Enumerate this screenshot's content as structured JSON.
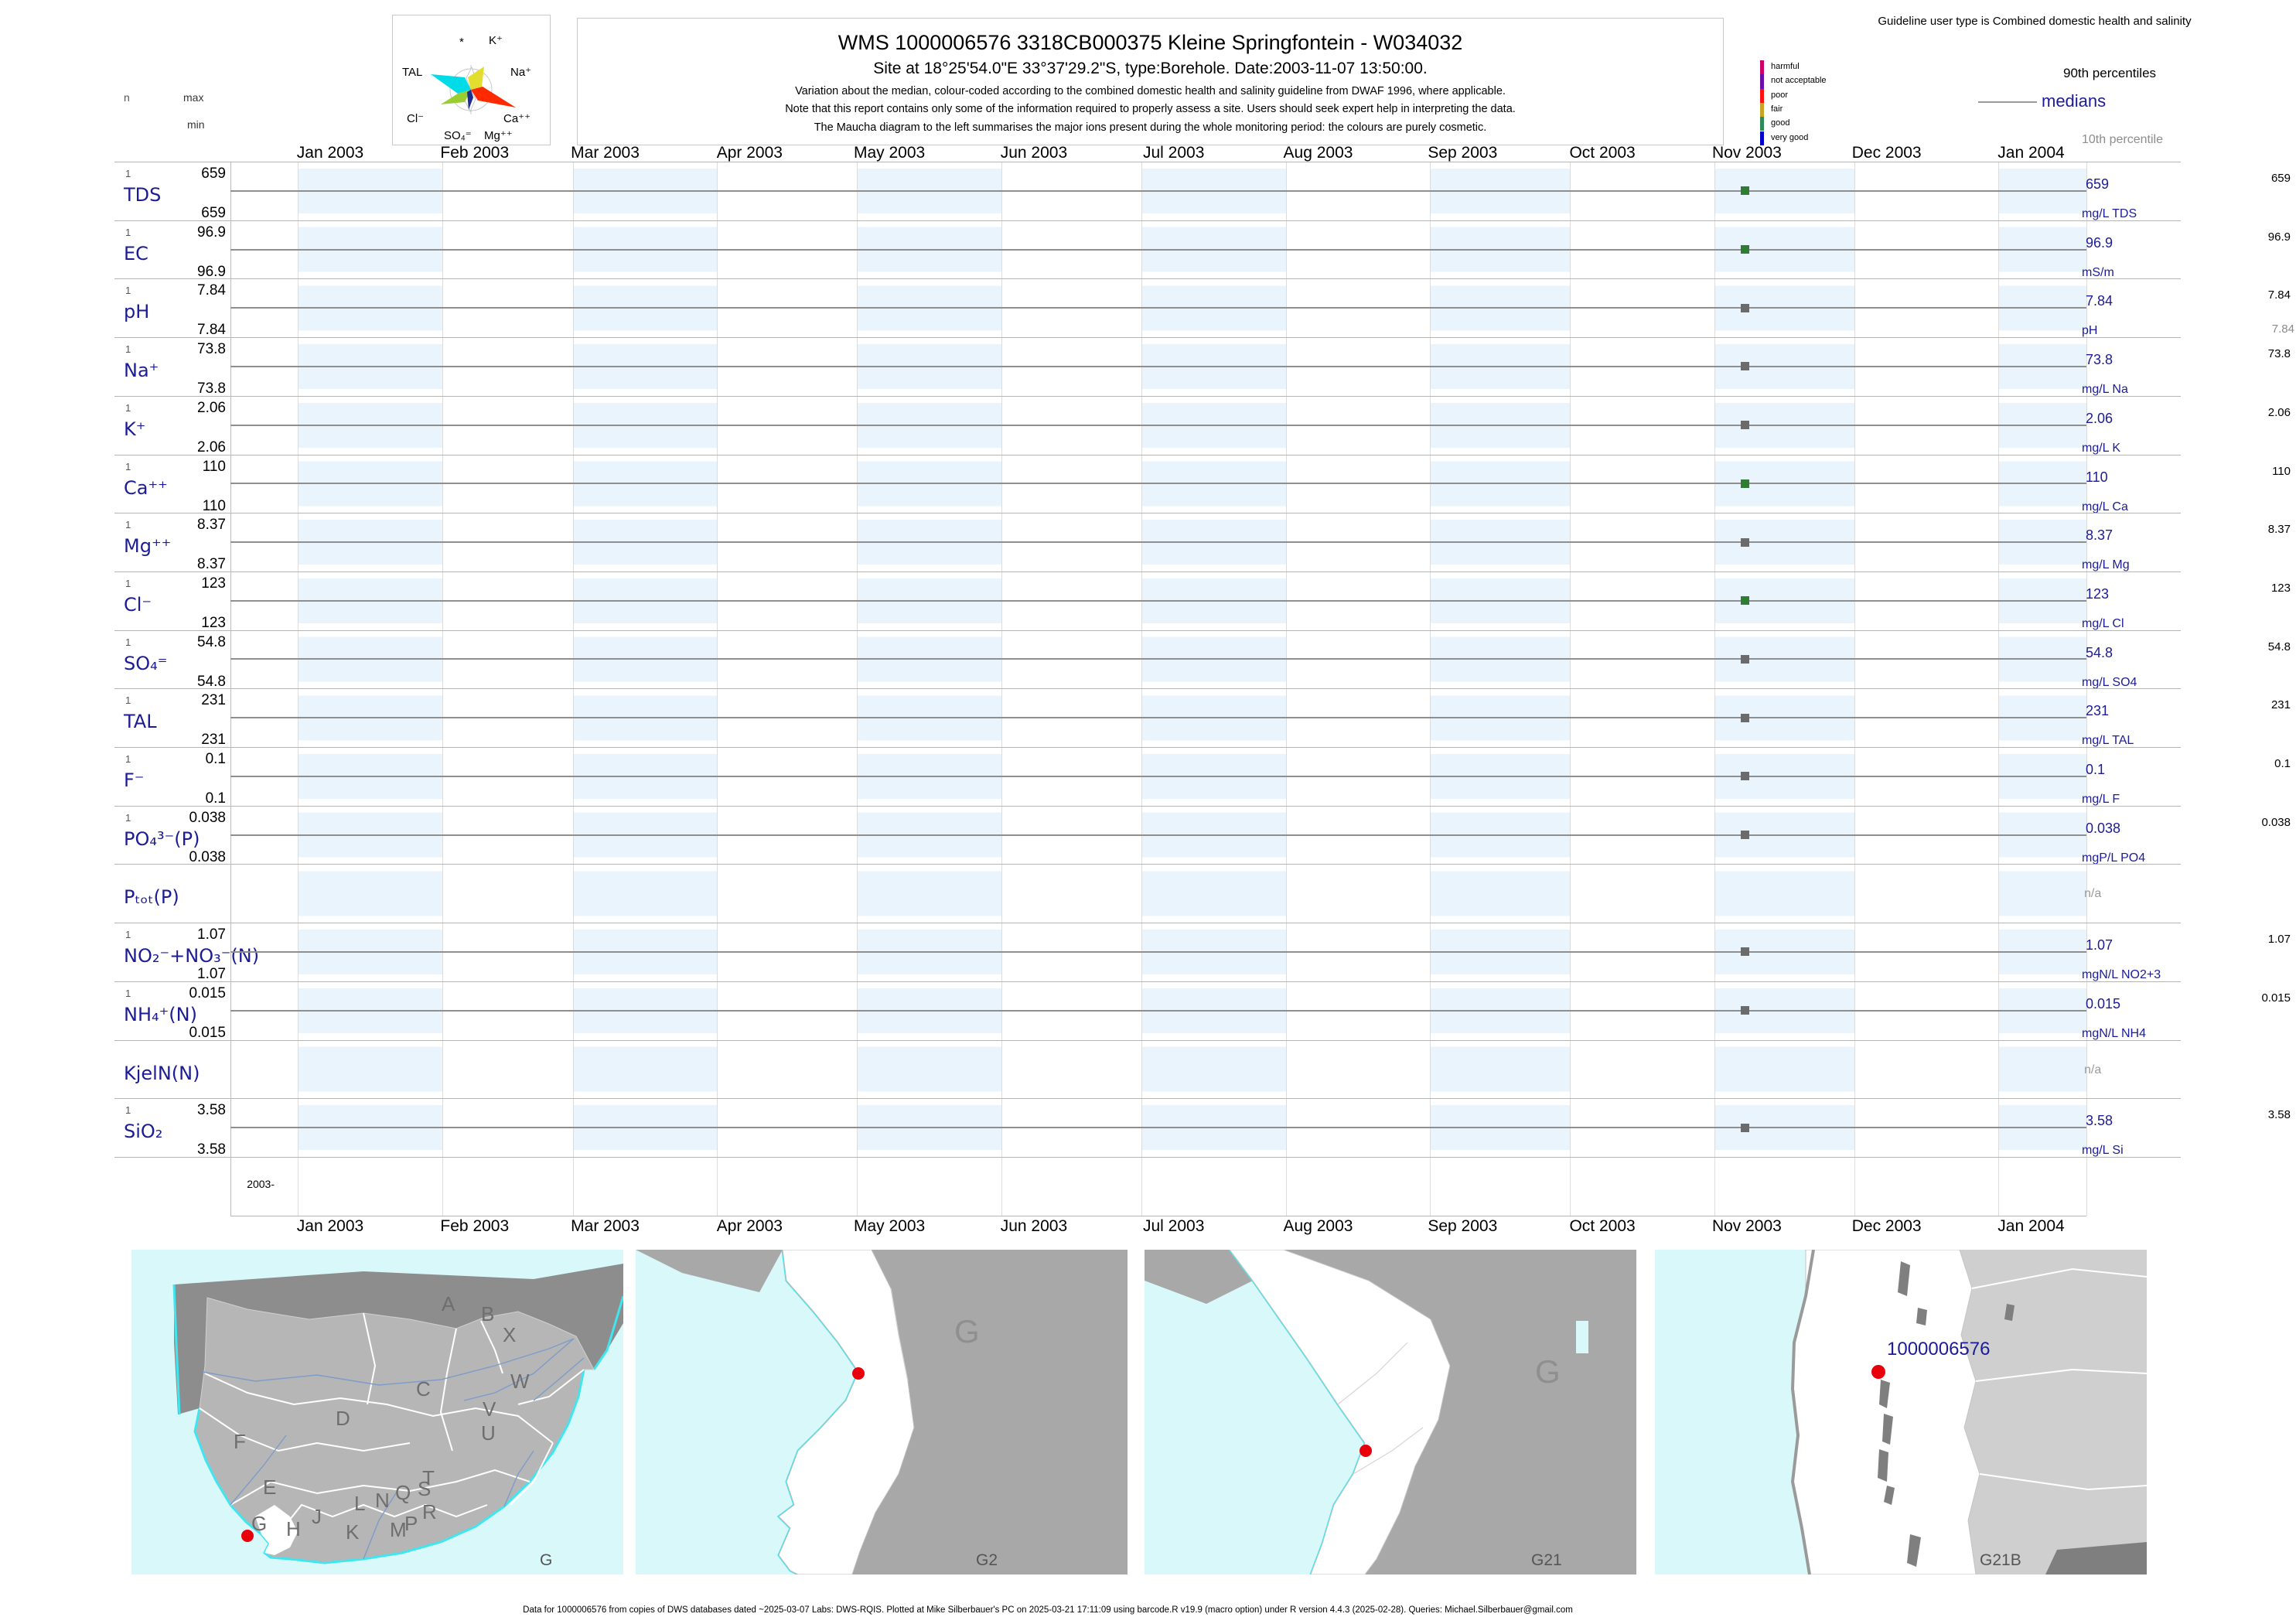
{
  "header": {
    "title": "WMS 1000006576  3318CB000375 Kleine Springfontein - W034032",
    "subtitle": "Site at 18°25'54.0\"E 33°37'29.2\"S, type:Borehole. Date:2003-11-07 13:50:00.",
    "note1": "Variation about the median,  colour-coded according to the combined domestic health and salinity guideline from DWAF 1996, where applicable.",
    "note2": "Note that this report contains only some of the information required to properly assess a site. Users should seek expert help in interpreting the data.",
    "note3": "The Maucha diagram to the left summarises the major ions present during the whole monitoring period: the colours are purely cosmetic."
  },
  "stats_legend": {
    "n": "n",
    "max": "max",
    "min": "min"
  },
  "maucha": {
    "labels": [
      "*",
      "K⁺",
      "TAL",
      "Na⁺",
      "Cl⁻",
      "Ca⁺⁺",
      "SO₄⁼",
      "Mg⁺⁺"
    ],
    "colors": {
      "tal": "#00dbe8",
      "na": "#e3dd2e",
      "ca": "#ff2a00",
      "cl": "#9acd32",
      "mg": "#1c2f8c"
    }
  },
  "guideline_legend": {
    "title": "Guideline user type is Combined domestic health and salinity",
    "classes": [
      {
        "label": "harmful",
        "color": "#cc0066"
      },
      {
        "label": "not acceptable",
        "color": "#6a0dad"
      },
      {
        "label": "poor",
        "color": "#ff1111"
      },
      {
        "label": "fair",
        "color": "#c9a227"
      },
      {
        "label": "good",
        "color": "#2e8b57"
      },
      {
        "label": "very good",
        "color": "#0000cc"
      }
    ],
    "p90_label": "90th percentiles",
    "median_label": "medians",
    "p10_label": "10th percentile"
  },
  "timeline": {
    "months": [
      "Jan 2003",
      "Feb 2003",
      "Mar 2003",
      "Apr 2003",
      "May 2003",
      "Jun 2003",
      "Jul 2003",
      "Aug 2003",
      "Sep 2003",
      "Oct 2003",
      "Nov 2003",
      "Dec 2003",
      "Jan 2004"
    ],
    "year_axis_label": "2003-",
    "sample_month_index": 10,
    "sample_day_fraction": 0.22
  },
  "status_colors": {
    "good": "#2e7d33",
    "none": "#6b6b6b"
  },
  "chart_data": {
    "type": "scatter",
    "title": "WMS 1000006576 3318CB000375 Kleine Springfontein - W034032",
    "x_range": [
      "Jan 2003",
      "Jan 2004"
    ],
    "sample_date": "2003-11-07",
    "rows": [
      {
        "name": "TDS",
        "n": "1",
        "max": "659",
        "min": "659",
        "median": "659",
        "p90": "659",
        "unit": "mg/L TDS",
        "status": "good",
        "has_data": true
      },
      {
        "name": "EC",
        "n": "1",
        "max": "96.9",
        "min": "96.9",
        "median": "96.9",
        "p90": "96.9",
        "unit": "mS/m",
        "status": "good",
        "has_data": true
      },
      {
        "name": "pH",
        "n": "1",
        "max": "7.84",
        "min": "7.84",
        "median": "7.84",
        "p90": "7.84",
        "p10": "7.84",
        "unit": "pH",
        "status": "none",
        "has_data": true
      },
      {
        "name": "Na⁺",
        "n": "1",
        "max": "73.8",
        "min": "73.8",
        "median": "73.8",
        "p90": "73.8",
        "unit": "mg/L Na",
        "status": "none",
        "has_data": true
      },
      {
        "name": "K⁺",
        "n": "1",
        "max": "2.06",
        "min": "2.06",
        "median": "2.06",
        "p90": "2.06",
        "unit": "mg/L K",
        "status": "none",
        "has_data": true
      },
      {
        "name": "Ca⁺⁺",
        "n": "1",
        "max": "110",
        "min": "110",
        "median": "110",
        "p90": "110",
        "unit": "mg/L Ca",
        "status": "good",
        "has_data": true
      },
      {
        "name": "Mg⁺⁺",
        "n": "1",
        "max": "8.37",
        "min": "8.37",
        "median": "8.37",
        "p90": "8.37",
        "unit": "mg/L Mg",
        "status": "none",
        "has_data": true
      },
      {
        "name": "Cl⁻",
        "n": "1",
        "max": "123",
        "min": "123",
        "median": "123",
        "p90": "123",
        "unit": "mg/L Cl",
        "status": "good",
        "has_data": true
      },
      {
        "name": "SO₄⁼",
        "n": "1",
        "max": "54.8",
        "min": "54.8",
        "median": "54.8",
        "p90": "54.8",
        "unit": "mg/L SO4",
        "status": "none",
        "has_data": true
      },
      {
        "name": "TAL",
        "n": "1",
        "max": "231",
        "min": "231",
        "median": "231",
        "p90": "231",
        "unit": "mg/L TAL",
        "status": "none",
        "has_data": true
      },
      {
        "name": "F⁻",
        "n": "1",
        "max": "0.1",
        "min": "0.1",
        "median": "0.1",
        "p90": "0.1",
        "unit": "mg/L F",
        "status": "none",
        "has_data": true
      },
      {
        "name": "PO₄³⁻(P)",
        "n": "1",
        "max": "0.038",
        "min": "0.038",
        "median": "0.038",
        "p90": "0.038",
        "unit": "mgP/L PO4",
        "status": "none",
        "has_data": true
      },
      {
        "name": "Pₜₒₜ(P)",
        "na": "n/a",
        "has_data": false
      },
      {
        "name": "NO₂⁻+NO₃⁻(N)",
        "n": "1",
        "max": "1.07",
        "min": "1.07",
        "median": "1.07",
        "p90": "1.07",
        "unit": "mgN/L NO2+3",
        "status": "none",
        "has_data": true
      },
      {
        "name": "NH₄⁺(N)",
        "n": "1",
        "max": "0.015",
        "min": "0.015",
        "median": "0.015",
        "p90": "0.015",
        "unit": "mgN/L NH4",
        "status": "none",
        "has_data": true
      },
      {
        "name": "KjelN(N)",
        "na": "n/a",
        "has_data": false
      },
      {
        "name": "SiO₂",
        "n": "1",
        "max": "3.58",
        "min": "3.58",
        "median": "3.58",
        "p90": "3.58",
        "unit": "mg/L Si",
        "status": "none",
        "has_data": true
      }
    ]
  },
  "maps": [
    {
      "corner_label": "G",
      "region_letters": [
        "A",
        "B",
        "X",
        "W",
        "C",
        "V",
        "U",
        "D",
        "F",
        "E",
        "T",
        "S",
        "Q",
        "R",
        "N",
        "L",
        "M",
        "P",
        "J",
        "K",
        "H",
        "G"
      ]
    },
    {
      "corner_label": "G2",
      "big_letter": "G"
    },
    {
      "corner_label": "G21",
      "big_letter": "G"
    },
    {
      "corner_label": "G21B",
      "site_label": "1000006576"
    }
  ],
  "footer": "Data for 1000006576 from copies of DWS databases dated ~2025-03-07 Labs: DWS-RQIS. Plotted at Mike Silberbauer's PC on 2025-03-21 17:11:09 using barcode.R v19.9 (macro option) under R version 4.4.3 (2025-02-28). Queries: Michael.Silberbauer@gmail.com"
}
